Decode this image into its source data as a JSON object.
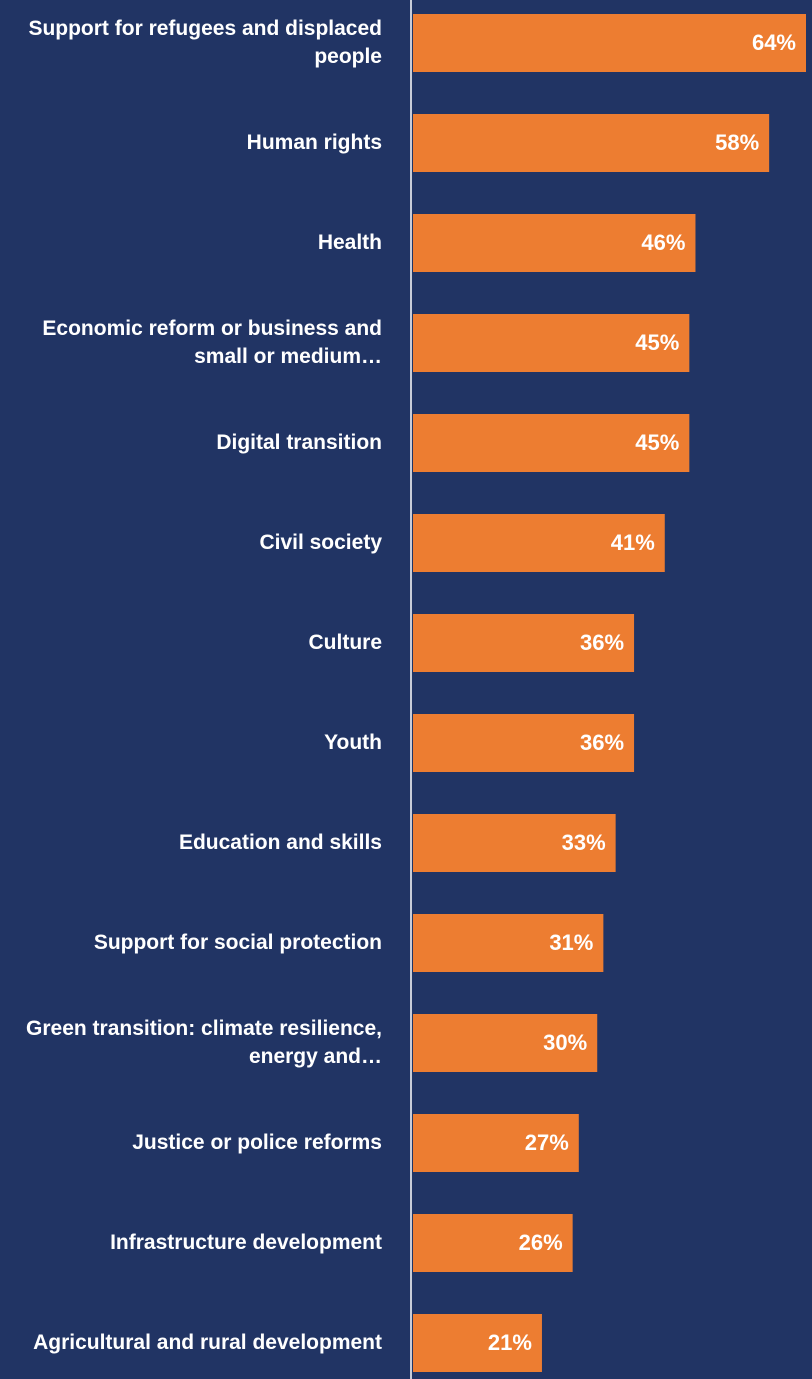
{
  "chart_data": {
    "type": "bar",
    "orientation": "horizontal",
    "color": "#ed7d31",
    "categories": [
      "Support for refugees and displaced people",
      "Human rights",
      "Health",
      "Economic reform or business and small or medium…",
      "Digital transition",
      "Civil society",
      "Culture",
      "Youth",
      "Education and skills",
      "Support for social protection",
      "Green transition: climate resilience, energy and…",
      "Justice or police reforms",
      "Infrastructure development",
      "Agricultural and rural development"
    ],
    "values": [
      64,
      58,
      46,
      45,
      45,
      41,
      36,
      36,
      33,
      31,
      30,
      27,
      26,
      21
    ],
    "value_labels": [
      "64%",
      "58%",
      "46%",
      "45%",
      "45%",
      "41%",
      "36%",
      "36%",
      "33%",
      "31%",
      "30%",
      "27%",
      "26%",
      "21%"
    ]
  }
}
